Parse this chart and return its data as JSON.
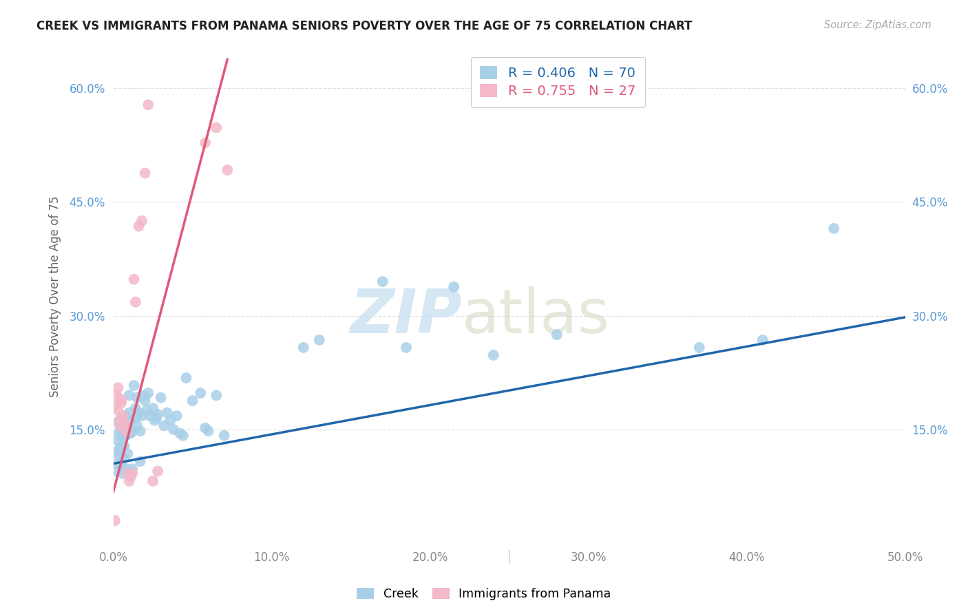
{
  "title": "CREEK VS IMMIGRANTS FROM PANAMA SENIORS POVERTY OVER THE AGE OF 75 CORRELATION CHART",
  "source": "Source: ZipAtlas.com",
  "ylabel": "Seniors Poverty Over the Age of 75",
  "xlim": [
    0.0,
    0.5
  ],
  "ylim": [
    0.0,
    0.65
  ],
  "xticks": [
    0.0,
    0.1,
    0.2,
    0.3,
    0.4,
    0.5
  ],
  "yticks": [
    0.0,
    0.15,
    0.3,
    0.45,
    0.6
  ],
  "xticklabels": [
    "0.0%",
    "10.0%",
    "20.0%",
    "30.0%",
    "40.0%",
    "50.0%"
  ],
  "yticklabels": [
    "",
    "15.0%",
    "30.0%",
    "45.0%",
    "60.0%"
  ],
  "creek_color": "#a8cfe8",
  "panama_color": "#f4b8c8",
  "creek_line_color": "#2166ac",
  "panama_line_color": "#e05878",
  "creek_R": 0.406,
  "creek_N": 70,
  "panama_R": 0.755,
  "panama_N": 27,
  "background_color": "#ffffff",
  "grid_color": "#e0e0e0",
  "creek_x": [
    0.001,
    0.002,
    0.002,
    0.003,
    0.003,
    0.003,
    0.004,
    0.004,
    0.005,
    0.005,
    0.005,
    0.006,
    0.006,
    0.007,
    0.007,
    0.007,
    0.008,
    0.008,
    0.008,
    0.009,
    0.009,
    0.01,
    0.01,
    0.011,
    0.011,
    0.012,
    0.012,
    0.013,
    0.014,
    0.014,
    0.015,
    0.015,
    0.016,
    0.017,
    0.017,
    0.018,
    0.019,
    0.02,
    0.021,
    0.022,
    0.023,
    0.025,
    0.026,
    0.027,
    0.028,
    0.03,
    0.032,
    0.034,
    0.036,
    0.038,
    0.04,
    0.042,
    0.044,
    0.046,
    0.05,
    0.055,
    0.058,
    0.06,
    0.065,
    0.07,
    0.12,
    0.13,
    0.17,
    0.185,
    0.215,
    0.24,
    0.28,
    0.37,
    0.41,
    0.455
  ],
  "creek_y": [
    0.12,
    0.105,
    0.095,
    0.145,
    0.135,
    0.16,
    0.125,
    0.115,
    0.155,
    0.148,
    0.102,
    0.138,
    0.092,
    0.158,
    0.128,
    0.112,
    0.142,
    0.098,
    0.168,
    0.118,
    0.152,
    0.195,
    0.172,
    0.145,
    0.162,
    0.098,
    0.148,
    0.208,
    0.165,
    0.178,
    0.155,
    0.192,
    0.172,
    0.148,
    0.108,
    0.168,
    0.195,
    0.188,
    0.175,
    0.198,
    0.168,
    0.178,
    0.162,
    0.165,
    0.17,
    0.192,
    0.155,
    0.172,
    0.162,
    0.15,
    0.168,
    0.145,
    0.142,
    0.218,
    0.188,
    0.198,
    0.152,
    0.148,
    0.195,
    0.142,
    0.258,
    0.268,
    0.345,
    0.258,
    0.338,
    0.248,
    0.275,
    0.258,
    0.268,
    0.415
  ],
  "panama_x": [
    0.001,
    0.001,
    0.002,
    0.003,
    0.003,
    0.004,
    0.004,
    0.005,
    0.005,
    0.006,
    0.007,
    0.008,
    0.009,
    0.01,
    0.011,
    0.012,
    0.013,
    0.014,
    0.016,
    0.018,
    0.02,
    0.022,
    0.025,
    0.028,
    0.058,
    0.065,
    0.072
  ],
  "panama_y": [
    0.03,
    0.182,
    0.195,
    0.205,
    0.175,
    0.155,
    0.162,
    0.19,
    0.185,
    0.168,
    0.158,
    0.148,
    0.092,
    0.082,
    0.088,
    0.092,
    0.348,
    0.318,
    0.418,
    0.425,
    0.488,
    0.578,
    0.082,
    0.095,
    0.528,
    0.548,
    0.492
  ],
  "creek_line_x": [
    0.0,
    0.5
  ],
  "creek_line_y": [
    0.105,
    0.298
  ],
  "panama_line_x": [
    0.0,
    0.072
  ],
  "panama_line_y": [
    0.068,
    0.638
  ]
}
